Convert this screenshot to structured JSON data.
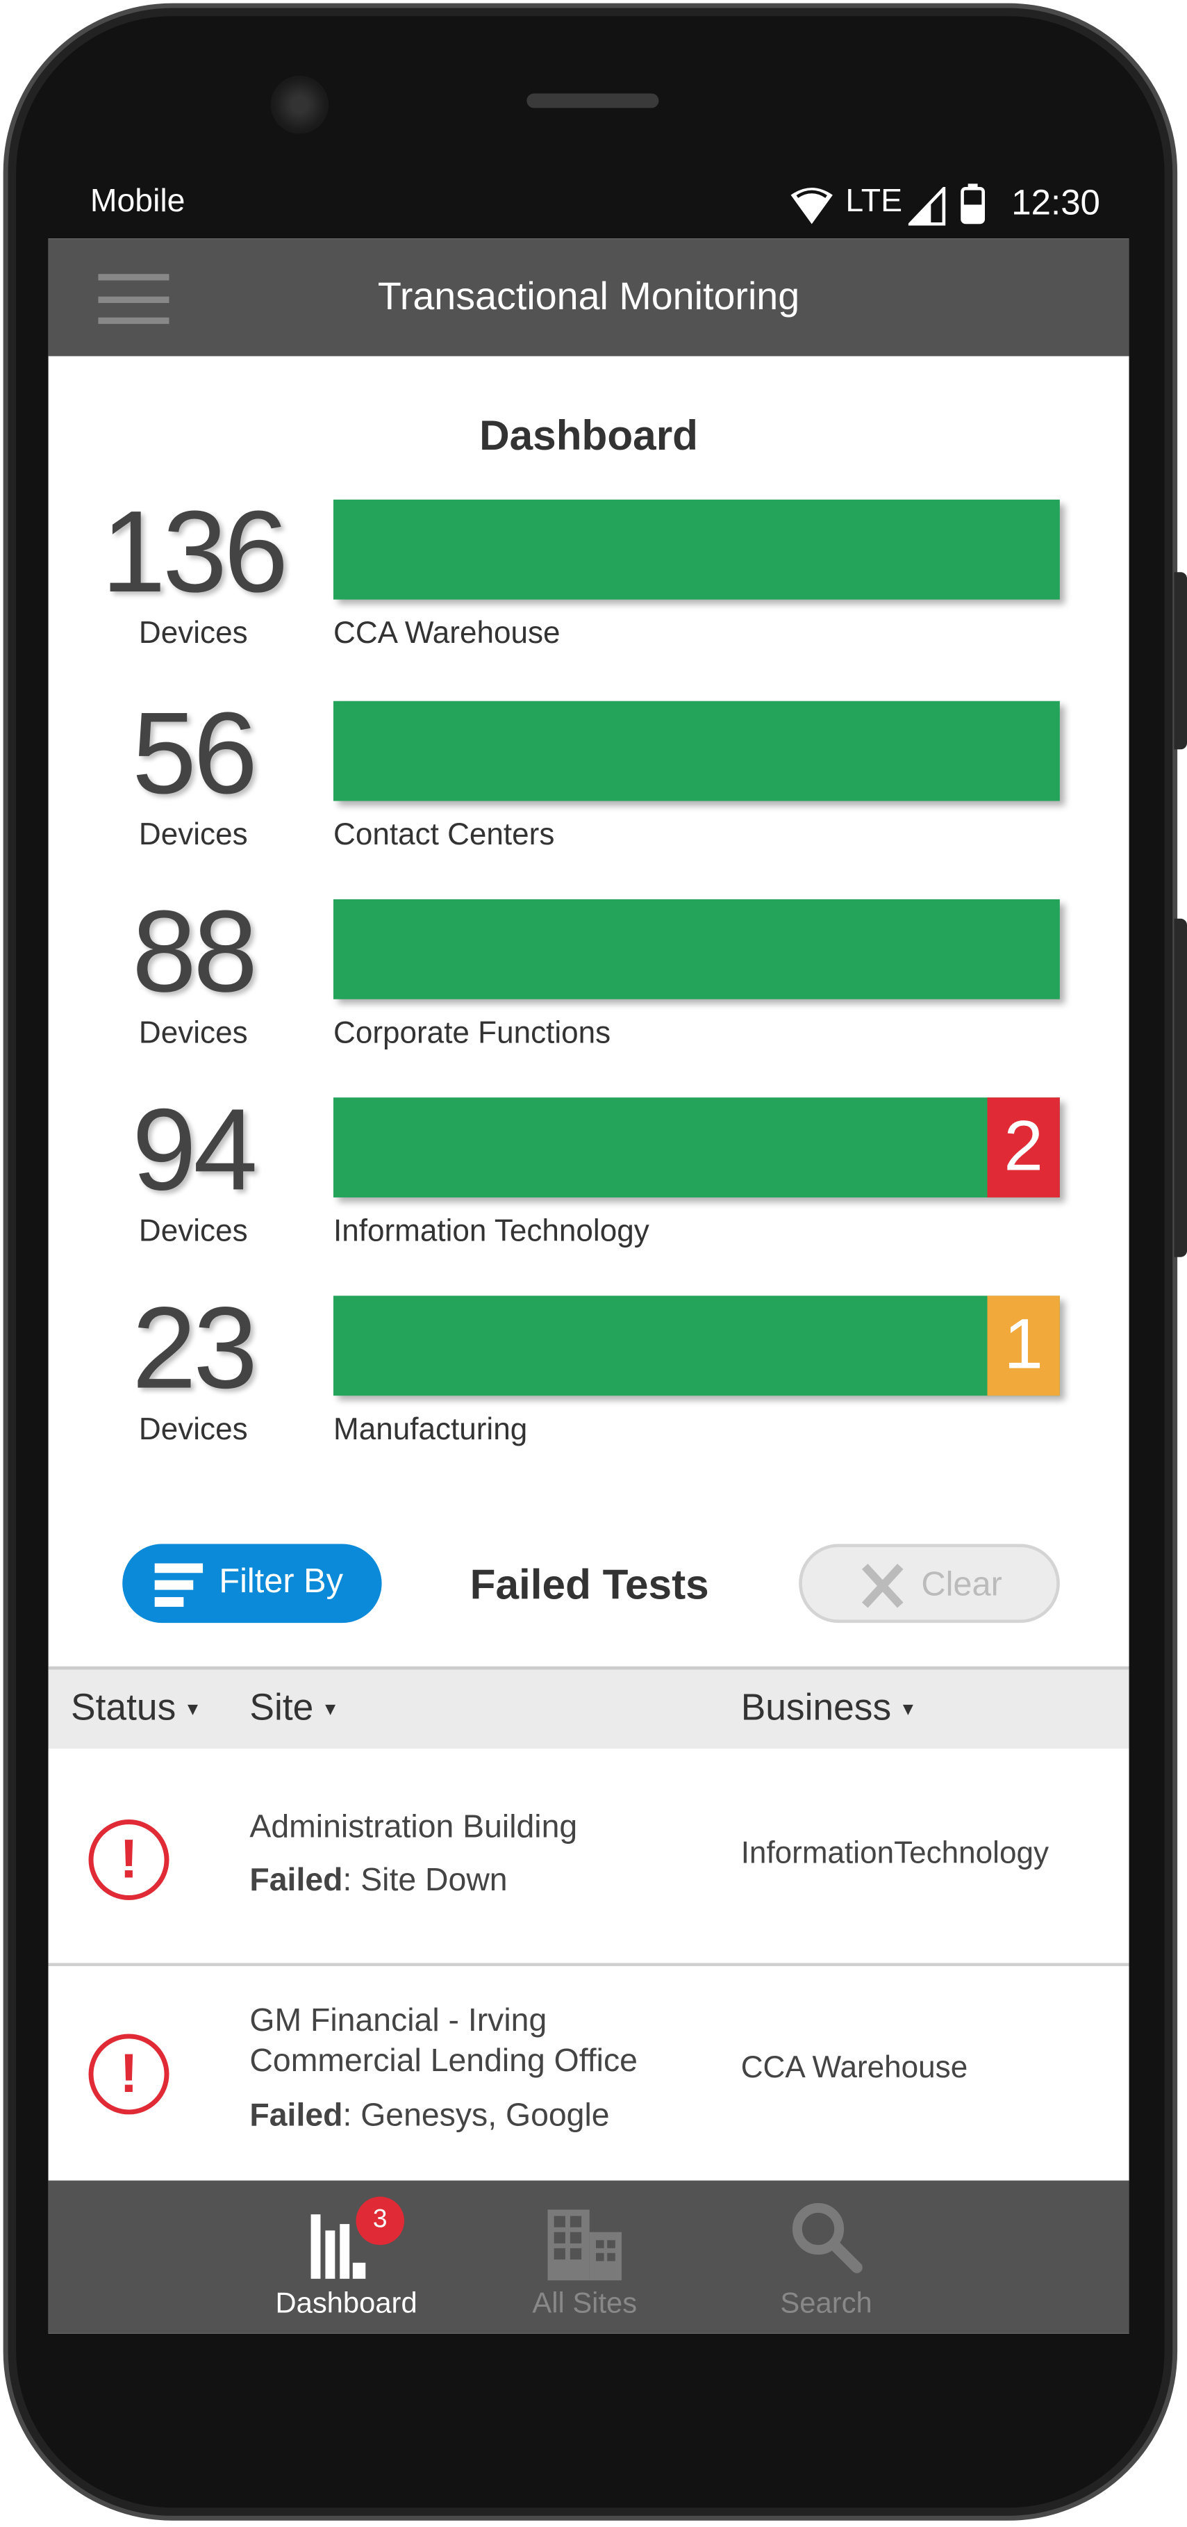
{
  "status_bar": {
    "carrier": "Mobile",
    "network": "LTE",
    "time": "12:30"
  },
  "app_bar": {
    "title": "Transactional Monitoring",
    "menu_icon": "hamburger-icon"
  },
  "dashboard": {
    "title": "Dashboard",
    "unit_label": "Devices",
    "groups": [
      {
        "count": "136",
        "name": "CCA Warehouse",
        "healthy_fraction": 1.0
      },
      {
        "count": "56",
        "name": "Contact Centers",
        "healthy_fraction": 1.0
      },
      {
        "count": "88",
        "name": "Corporate Functions",
        "healthy_fraction": 1.0
      },
      {
        "count": "94",
        "name": "Information Technology",
        "healthy_fraction": 0.9,
        "alert_count": "2",
        "alert_color": "#e02a36"
      },
      {
        "count": "23",
        "name": "Manufacturing",
        "healthy_fraction": 0.9,
        "alert_count": "1",
        "alert_color": "#f2a93b"
      }
    ],
    "healthy_color": "#24a35a"
  },
  "failed_tests": {
    "filter_label": "Filter By",
    "title": "Failed Tests",
    "clear_label": "Clear",
    "columns": [
      "Status",
      "Site",
      "Business"
    ],
    "rows": [
      {
        "status": "error",
        "site": [
          "Administration Building"
        ],
        "failed_label": "Failed",
        "failed_value": ": Site Down",
        "business": "InformationTechnology"
      },
      {
        "status": "error",
        "site": [
          "GM Financial - Irving",
          "Commercial Lending Office"
        ],
        "failed_label": "Failed",
        "failed_value": ": Genesys, Google",
        "business": "CCA Warehouse"
      }
    ]
  },
  "bottom_nav": {
    "items": [
      {
        "label": "Dashboard",
        "icon": "bar-chart-icon",
        "active": true,
        "badge": "3"
      },
      {
        "label": "All Sites",
        "icon": "buildings-icon",
        "active": false
      },
      {
        "label": "Search",
        "icon": "search-icon",
        "active": false
      }
    ]
  }
}
